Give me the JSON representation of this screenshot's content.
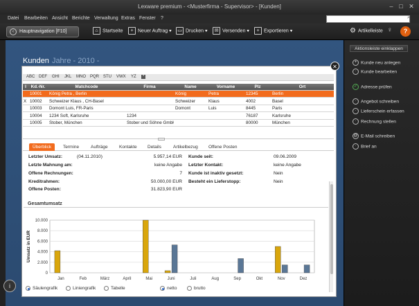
{
  "window": {
    "title": "Lexware premium - <Musterfirma - Supervisor> - [Kunden]"
  },
  "menu": [
    "Datei",
    "Bearbeiten",
    "Ansicht",
    "Berichte",
    "Verwaltung",
    "Extras",
    "Fenster",
    "?"
  ],
  "toolbar": {
    "hauptnav_label": "Hauptnavigation [F10]",
    "startseite": "Startseite",
    "neuer_auftrag": "Neuer Auftrag",
    "drucken": "Drucken",
    "versenden": "Versenden",
    "exportieren": "Exportieren",
    "artikelleiste": "Artikelleiste"
  },
  "heading": {
    "title": "Kunden",
    "sub": "Jahre - 2010 -"
  },
  "alpha_filter": [
    "ABC",
    "DEF",
    "GHI",
    "JKL",
    "MNO",
    "PQR",
    "STU",
    "VWX",
    "YZ",
    "*"
  ],
  "table": {
    "columns": [
      "I",
      "Kd.-Nr.",
      "Matchcode",
      "Firma",
      "Name",
      "Vorname",
      "Plz",
      "Ort"
    ],
    "rows": [
      {
        "flag": "",
        "nr": "10001",
        "match": "König Petra , Berlin",
        "firma": "",
        "name": "König",
        "vorname": "Petra",
        "plz": "12345",
        "ort": "Berlin",
        "selected": true
      },
      {
        "flag": "X",
        "nr": "10002",
        "match": "Schweizer Klaus , CH-Basel",
        "firma": "",
        "name": "Schweizer",
        "vorname": "Klaus",
        "plz": "4002",
        "ort": "Basel",
        "selected": false
      },
      {
        "flag": "",
        "nr": "10003",
        "match": "Domont Luis, FR-Paris",
        "firma": "",
        "name": "Domont",
        "vorname": "Luis",
        "plz": "8445",
        "ort": "Paris",
        "selected": false
      },
      {
        "flag": "",
        "nr": "10004",
        "match": "1234 Soft, Karlsruhe",
        "firma": "1234",
        "name": "",
        "vorname": "",
        "plz": "76187",
        "ort": "Karlsruhe",
        "selected": false
      },
      {
        "flag": "",
        "nr": "10005",
        "match": "Stober, München",
        "firma": "Stober und Söhne GmbH",
        "name": "",
        "vorname": "",
        "plz": "80000",
        "ort": "München",
        "selected": false
      }
    ]
  },
  "tabs": [
    "Überblick",
    "Termine",
    "Aufträge",
    "Kontakte",
    "Details",
    "Artikelbezug",
    "Offene Posten"
  ],
  "overview": {
    "letzter_umsatz_label": "Letzter Umsatz:",
    "letzter_umsatz_date": "(04.11.2010)",
    "letzter_umsatz_value": "5.957,14 EUR",
    "letzte_mahnung_label": "Letzte Mahnung am:",
    "letzte_mahnung_value": "keine Angabe",
    "offene_rechnungen_label": "Offene Rechnungen:",
    "offene_rechnungen_value": "7",
    "kreditrahmen_label": "Kreditrahmen:",
    "kreditrahmen_value": "50.000,00 EUR",
    "offene_posten_label": "Offene Posten:",
    "offene_posten_value": "31.823,90 EUR",
    "kunde_seit_label": "Kunde seit:",
    "kunde_seit_value": "09.06.2009",
    "letzter_kontakt_label": "Letzter Kontakt:",
    "letzter_kontakt_value": "keine Angabe",
    "inaktiv_label": "Kunde ist inaktiv gesetzt:",
    "inaktiv_value": "Nein",
    "lieferstopp_label": "Besteht ein Lieferstopp:",
    "lieferstopp_value": "Nein"
  },
  "section": {
    "gesamtumsatz": "Gesamtumsatz"
  },
  "chart_data": {
    "type": "bar",
    "categories": [
      "Jan",
      "Feb",
      "März",
      "April",
      "Mai",
      "Juni",
      "Juli",
      "Aug",
      "Sep",
      "Okt",
      "Nov",
      "Dez"
    ],
    "series": [
      {
        "values": [
          4200,
          0,
          0,
          0,
          10000,
          400,
          0,
          0,
          0,
          0,
          5000,
          0
        ],
        "color": "#d9a60c"
      },
      {
        "values": [
          0,
          0,
          0,
          0,
          0,
          5300,
          0,
          0,
          2700,
          0,
          1500,
          1500
        ],
        "color": "#5a7796"
      }
    ],
    "ylabel": "Umsatz in EUR",
    "yticks": [
      "0",
      "2.000",
      "4.000",
      "6.000",
      "8.000",
      "10.000"
    ],
    "ylim": [
      0,
      10000
    ],
    "grid": true
  },
  "chart_options": {
    "saeulengrafik": "Säulengrafik",
    "liniengrafik": "Liniengrafik",
    "tabelle": "Tabelle",
    "netto": "netto",
    "brutto": "brutto"
  },
  "action_panel": {
    "collapse_label": "Aktionsleiste einklappen",
    "items": [
      "Kunde neu anlegen",
      "Kunde bearbeiten",
      "Adresse prüfen",
      "Angebot schreiben",
      "Lieferschein erfassen",
      "Rechnung stellen",
      "E-Mail schreiben",
      "Brief an"
    ]
  }
}
